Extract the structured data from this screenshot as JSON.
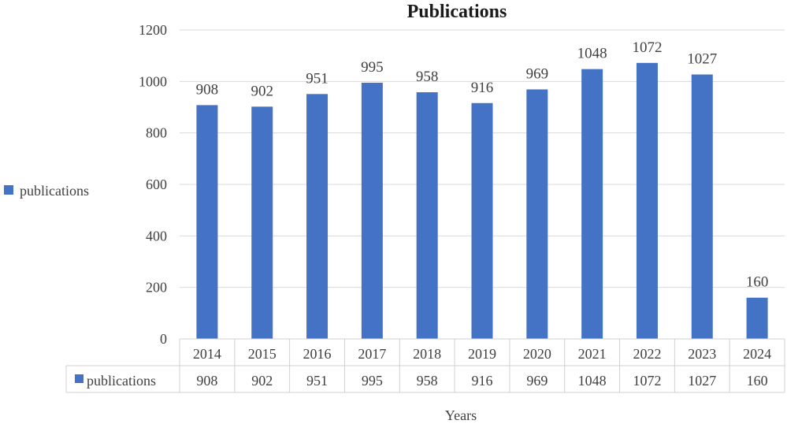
{
  "chart_data": {
    "type": "bar",
    "title": "Publications",
    "xlabel": "Years",
    "ylabel": "",
    "ylim": [
      0,
      1200
    ],
    "yticks": [
      0,
      200,
      400,
      600,
      800,
      1000,
      1200
    ],
    "grid": true,
    "legend_position": "left",
    "categories": [
      "2014",
      "2015",
      "2016",
      "2017",
      "2018",
      "2019",
      "2020",
      "2021",
      "2022",
      "2023",
      "2024"
    ],
    "series": [
      {
        "name": "publications",
        "color": "#4472C4",
        "values": [
          908,
          902,
          951,
          995,
          958,
          916,
          969,
          1048,
          1072,
          1027,
          160
        ]
      }
    ],
    "data_table": true
  }
}
